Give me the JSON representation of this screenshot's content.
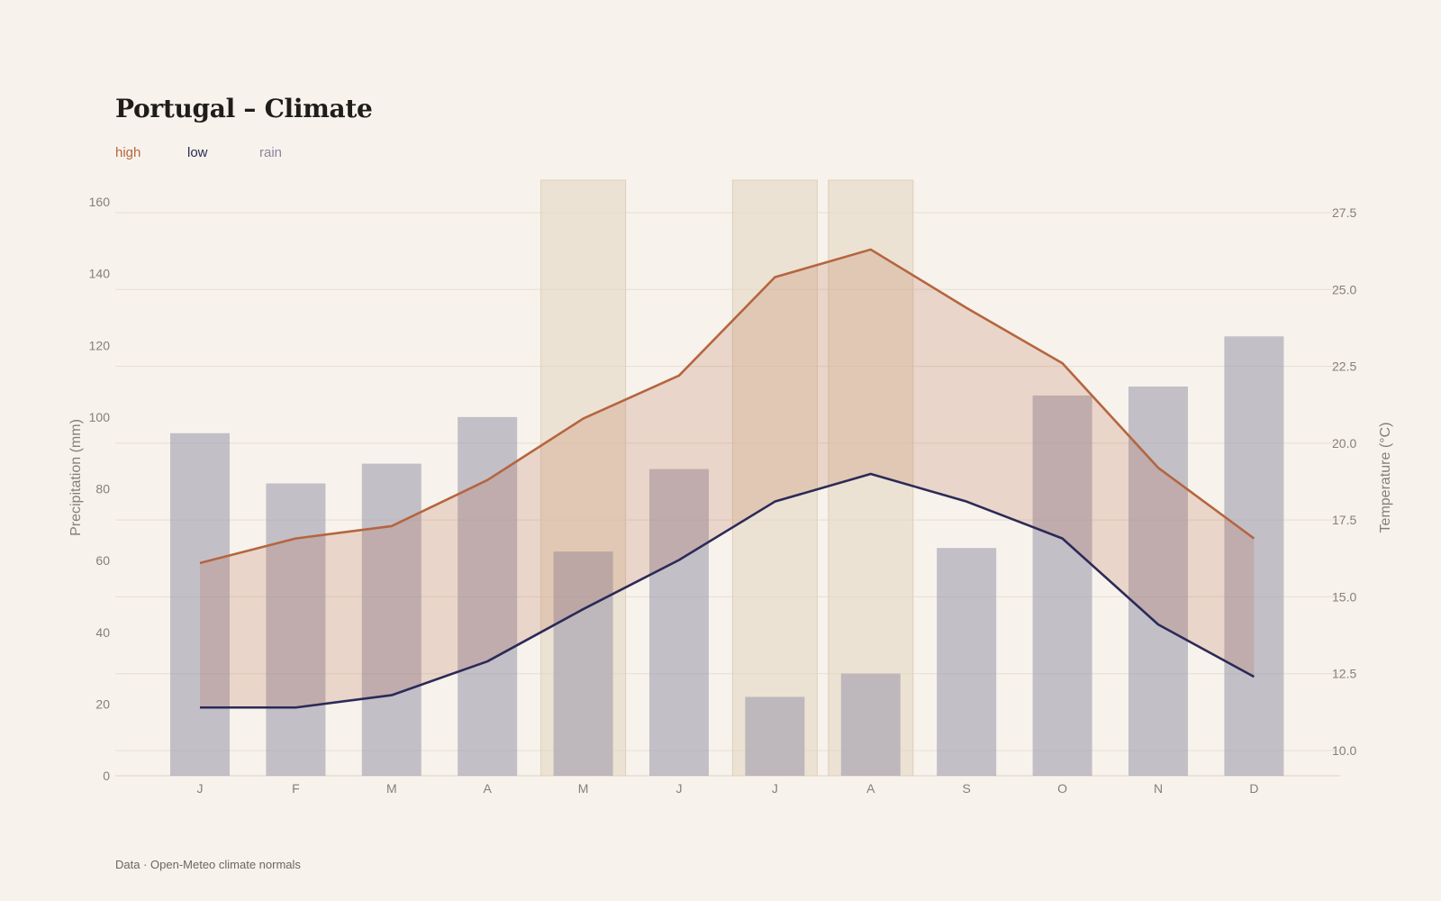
{
  "title": "Portugal – Climate",
  "footer": "Data · Open-Meteo climate normals",
  "colors": {
    "high": "#b5653f",
    "low": "#2b2a58",
    "rain": "#7e7a96",
    "band_fill": "#b5653f",
    "highlight": "#e3d5bf",
    "grid": "#e6ded3",
    "background": "#f7f2eb"
  },
  "legend": [
    {
      "label": "high",
      "color": "#b5653f"
    },
    {
      "label": "low",
      "color": "#2b2a58"
    },
    {
      "label": "rain",
      "color": "#8a86a0"
    }
  ],
  "chart_data": {
    "type": "bar",
    "title": "Portugal – Climate",
    "categories": [
      "J",
      "F",
      "M",
      "A",
      "M",
      "J",
      "J",
      "A",
      "S",
      "O",
      "N",
      "D"
    ],
    "series": [
      {
        "name": "rain",
        "type": "bar",
        "axis": "left",
        "values": [
          95.5,
          81.5,
          87,
          100,
          62.5,
          85.5,
          22,
          28.5,
          63.5,
          106,
          108.5,
          122.5
        ]
      },
      {
        "name": "high",
        "type": "line",
        "axis": "right",
        "values": [
          16.1,
          16.9,
          17.3,
          18.8,
          20.8,
          22.2,
          25.4,
          26.3,
          24.4,
          22.6,
          19.2,
          16.9
        ]
      },
      {
        "name": "low",
        "type": "line",
        "axis": "right",
        "values": [
          11.4,
          11.4,
          11.8,
          12.9,
          14.6,
          16.2,
          18.1,
          19.0,
          18.1,
          16.9,
          14.1,
          12.4
        ]
      }
    ],
    "highlight_months": [
      4,
      6,
      7
    ],
    "y_left": {
      "label": "Precipitation (mm)",
      "lim": [
        0,
        160
      ],
      "ticks": [
        0,
        20,
        40,
        60,
        80,
        100,
        120,
        140,
        160
      ]
    },
    "y_right": {
      "label": "Temperature (°C)",
      "lim": [
        9.2,
        27.9
      ],
      "ticks": [
        "10.0",
        "12.5",
        "15.0",
        "17.5",
        "20.0",
        "22.5",
        "25.0",
        "27.5"
      ]
    },
    "grid": "horizontal",
    "legend_position": "top-left"
  }
}
